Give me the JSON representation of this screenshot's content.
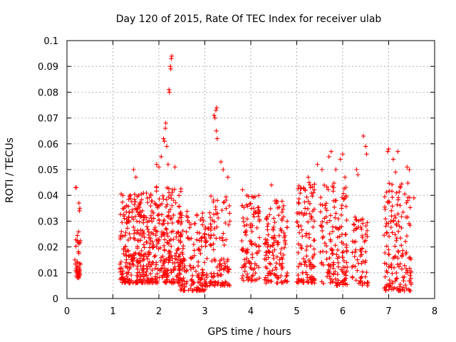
{
  "chart_data": {
    "type": "scatter",
    "title": "Day 120 of 2015, Rate Of TEC Index for receiver ulab",
    "xlabel": "GPS time / hours",
    "ylabel": "ROTI / TECUs",
    "xlim": [
      0,
      8
    ],
    "ylim": [
      0,
      0.1
    ],
    "xticks": [
      "0",
      "1",
      "2",
      "3",
      "4",
      "5",
      "6",
      "7",
      "8"
    ],
    "yticks": [
      "0",
      "0.01",
      "0.02",
      "0.03",
      "0.04",
      "0.05",
      "0.06",
      "0.07",
      "0.08",
      "0.09",
      "0.1"
    ],
    "grid": true,
    "marker": "plus",
    "color": "#ff0000",
    "clusters": [
      {
        "x": [
          0.17,
          0.3
        ],
        "y": [
          0.008,
          0.026
        ],
        "n": 40
      },
      {
        "x": [
          1.15,
          1.8
        ],
        "y": [
          0.006,
          0.041
        ],
        "n": 260
      },
      {
        "x": [
          1.8,
          2.5
        ],
        "y": [
          0.006,
          0.045
        ],
        "n": 260
      },
      {
        "x": [
          2.45,
          3.05
        ],
        "y": [
          0.003,
          0.034
        ],
        "n": 160
      },
      {
        "x": [
          3.05,
          3.55
        ],
        "y": [
          0.005,
          0.04
        ],
        "n": 110
      },
      {
        "x": [
          3.8,
          4.2
        ],
        "y": [
          0.007,
          0.043
        ],
        "n": 110
      },
      {
        "x": [
          4.3,
          4.8
        ],
        "y": [
          0.006,
          0.038
        ],
        "n": 130
      },
      {
        "x": [
          5.0,
          5.4
        ],
        "y": [
          0.006,
          0.045
        ],
        "n": 120
      },
      {
        "x": [
          5.5,
          6.1
        ],
        "y": [
          0.005,
          0.045
        ],
        "n": 150
      },
      {
        "x": [
          6.2,
          6.55
        ],
        "y": [
          0.005,
          0.032
        ],
        "n": 70
      },
      {
        "x": [
          6.9,
          7.5
        ],
        "y": [
          0.003,
          0.045
        ],
        "n": 160
      }
    ],
    "outliers": [
      [
        0.19,
        0.043
      ],
      [
        0.2,
        0.043
      ],
      [
        0.26,
        0.037
      ],
      [
        0.27,
        0.034
      ],
      [
        0.28,
        0.035
      ],
      [
        1.45,
        0.05
      ],
      [
        1.5,
        0.047
      ],
      [
        1.95,
        0.052
      ],
      [
        2.0,
        0.051
      ],
      [
        2.05,
        0.055
      ],
      [
        2.1,
        0.062
      ],
      [
        2.12,
        0.061
      ],
      [
        2.14,
        0.066
      ],
      [
        2.15,
        0.068
      ],
      [
        2.17,
        0.059
      ],
      [
        2.2,
        0.052
      ],
      [
        2.22,
        0.081
      ],
      [
        2.23,
        0.08
      ],
      [
        2.25,
        0.09
      ],
      [
        2.26,
        0.089
      ],
      [
        2.27,
        0.093
      ],
      [
        2.28,
        0.094
      ],
      [
        2.35,
        0.051
      ],
      [
        3.2,
        0.071
      ],
      [
        3.22,
        0.07
      ],
      [
        3.24,
        0.073
      ],
      [
        3.26,
        0.074
      ],
      [
        3.25,
        0.065
      ],
      [
        3.27,
        0.062
      ],
      [
        3.35,
        0.053
      ],
      [
        3.4,
        0.05
      ],
      [
        3.5,
        0.047
      ],
      [
        4.45,
        0.044
      ],
      [
        5.25,
        0.047
      ],
      [
        5.3,
        0.043
      ],
      [
        5.45,
        0.052
      ],
      [
        5.55,
        0.05
      ],
      [
        5.7,
        0.055
      ],
      [
        5.75,
        0.057
      ],
      [
        5.85,
        0.05
      ],
      [
        5.95,
        0.054
      ],
      [
        6.0,
        0.056
      ],
      [
        6.05,
        0.047
      ],
      [
        6.3,
        0.05
      ],
      [
        6.33,
        0.048
      ],
      [
        6.45,
        0.063
      ],
      [
        6.5,
        0.059
      ],
      [
        6.52,
        0.056
      ],
      [
        6.98,
        0.057
      ],
      [
        7.0,
        0.058
      ],
      [
        7.1,
        0.054
      ],
      [
        7.15,
        0.049
      ],
      [
        7.2,
        0.057
      ],
      [
        7.4,
        0.051
      ],
      [
        7.45,
        0.05
      ],
      [
        7.55,
        0.039
      ]
    ]
  }
}
